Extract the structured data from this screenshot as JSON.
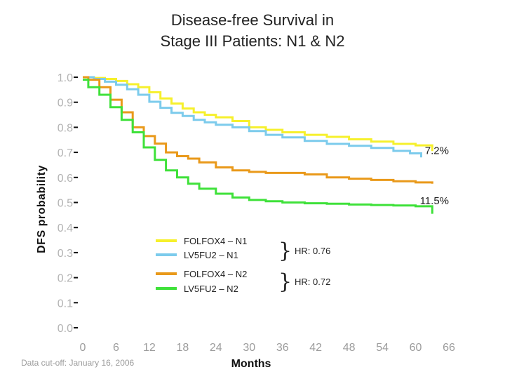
{
  "chart_data": {
    "type": "line",
    "title_lines": [
      "Disease-free Survival in",
      "Stage III Patients: N1 & N2"
    ],
    "xlabel": "Months",
    "ylabel": "DFS probability",
    "xlim": [
      0,
      66
    ],
    "ylim": [
      0,
      1.0
    ],
    "x_ticks": [
      "0",
      "6",
      "12",
      "18",
      "24",
      "30",
      "36",
      "42",
      "48",
      "54",
      "60",
      "66"
    ],
    "y_ticks": [
      "1.0",
      "0.9",
      "0.8",
      "0.7",
      "0.6",
      "0.5",
      "0.4",
      "0.3",
      "0.2",
      "0.1",
      "0.0"
    ],
    "series": [
      {
        "name": "FOLFOX4 – N1",
        "color": "#f6f02c",
        "x": [
          0,
          2,
          4,
          6,
          8,
          10,
          12,
          14,
          16,
          18,
          20,
          22,
          24,
          27,
          30,
          33,
          36,
          40,
          44,
          48,
          52,
          56,
          60,
          63
        ],
        "y": [
          1.0,
          0.997,
          0.993,
          0.985,
          0.972,
          0.96,
          0.94,
          0.915,
          0.895,
          0.875,
          0.86,
          0.85,
          0.84,
          0.825,
          0.8,
          0.79,
          0.78,
          0.77,
          0.762,
          0.752,
          0.743,
          0.734,
          0.728,
          0.705
        ]
      },
      {
        "name": "LV5FU2 – N1",
        "color": "#7ccbec",
        "x": [
          0,
          2,
          4,
          6,
          8,
          10,
          12,
          14,
          16,
          18,
          20,
          22,
          24,
          27,
          30,
          33,
          36,
          40,
          44,
          48,
          52,
          56,
          59,
          61
        ],
        "y": [
          1.0,
          0.993,
          0.982,
          0.97,
          0.952,
          0.93,
          0.902,
          0.878,
          0.858,
          0.845,
          0.83,
          0.82,
          0.81,
          0.8,
          0.785,
          0.77,
          0.76,
          0.746,
          0.734,
          0.726,
          0.718,
          0.706,
          0.696,
          0.68
        ]
      },
      {
        "name": "FOLFOX4 – N2",
        "color": "#e9991a",
        "x": [
          0,
          1,
          3,
          5,
          7,
          9,
          11,
          13,
          15,
          17,
          19,
          21,
          24,
          27,
          30,
          33,
          36,
          40,
          44,
          48,
          52,
          56,
          60,
          63
        ],
        "y": [
          1.0,
          0.99,
          0.96,
          0.91,
          0.86,
          0.8,
          0.765,
          0.735,
          0.7,
          0.685,
          0.675,
          0.66,
          0.64,
          0.628,
          0.622,
          0.618,
          0.618,
          0.612,
          0.6,
          0.595,
          0.59,
          0.585,
          0.58,
          0.575
        ]
      },
      {
        "name": "LV5FU2 – N2",
        "color": "#3fe13a",
        "x": [
          0,
          1,
          3,
          5,
          7,
          9,
          11,
          13,
          15,
          17,
          19,
          21,
          24,
          27,
          30,
          33,
          36,
          40,
          44,
          48,
          52,
          56,
          60,
          63
        ],
        "y": [
          0.99,
          0.96,
          0.93,
          0.88,
          0.83,
          0.78,
          0.72,
          0.67,
          0.628,
          0.6,
          0.575,
          0.555,
          0.535,
          0.52,
          0.51,
          0.505,
          0.5,
          0.497,
          0.495,
          0.492,
          0.49,
          0.488,
          0.485,
          0.455
        ]
      }
    ],
    "end_labels": [
      {
        "text": "7.2%",
        "x": 66,
        "y": 0.71
      },
      {
        "text": "11.5%",
        "x": 66,
        "y": 0.51
      }
    ],
    "hazard_ratios": [
      {
        "text": "HR: 0.76",
        "y": 0.31
      },
      {
        "text": "HR: 0.72",
        "y": 0.19
      }
    ],
    "legend_position": "center",
    "footnote": "Data cut-off: January 16, 2006"
  }
}
